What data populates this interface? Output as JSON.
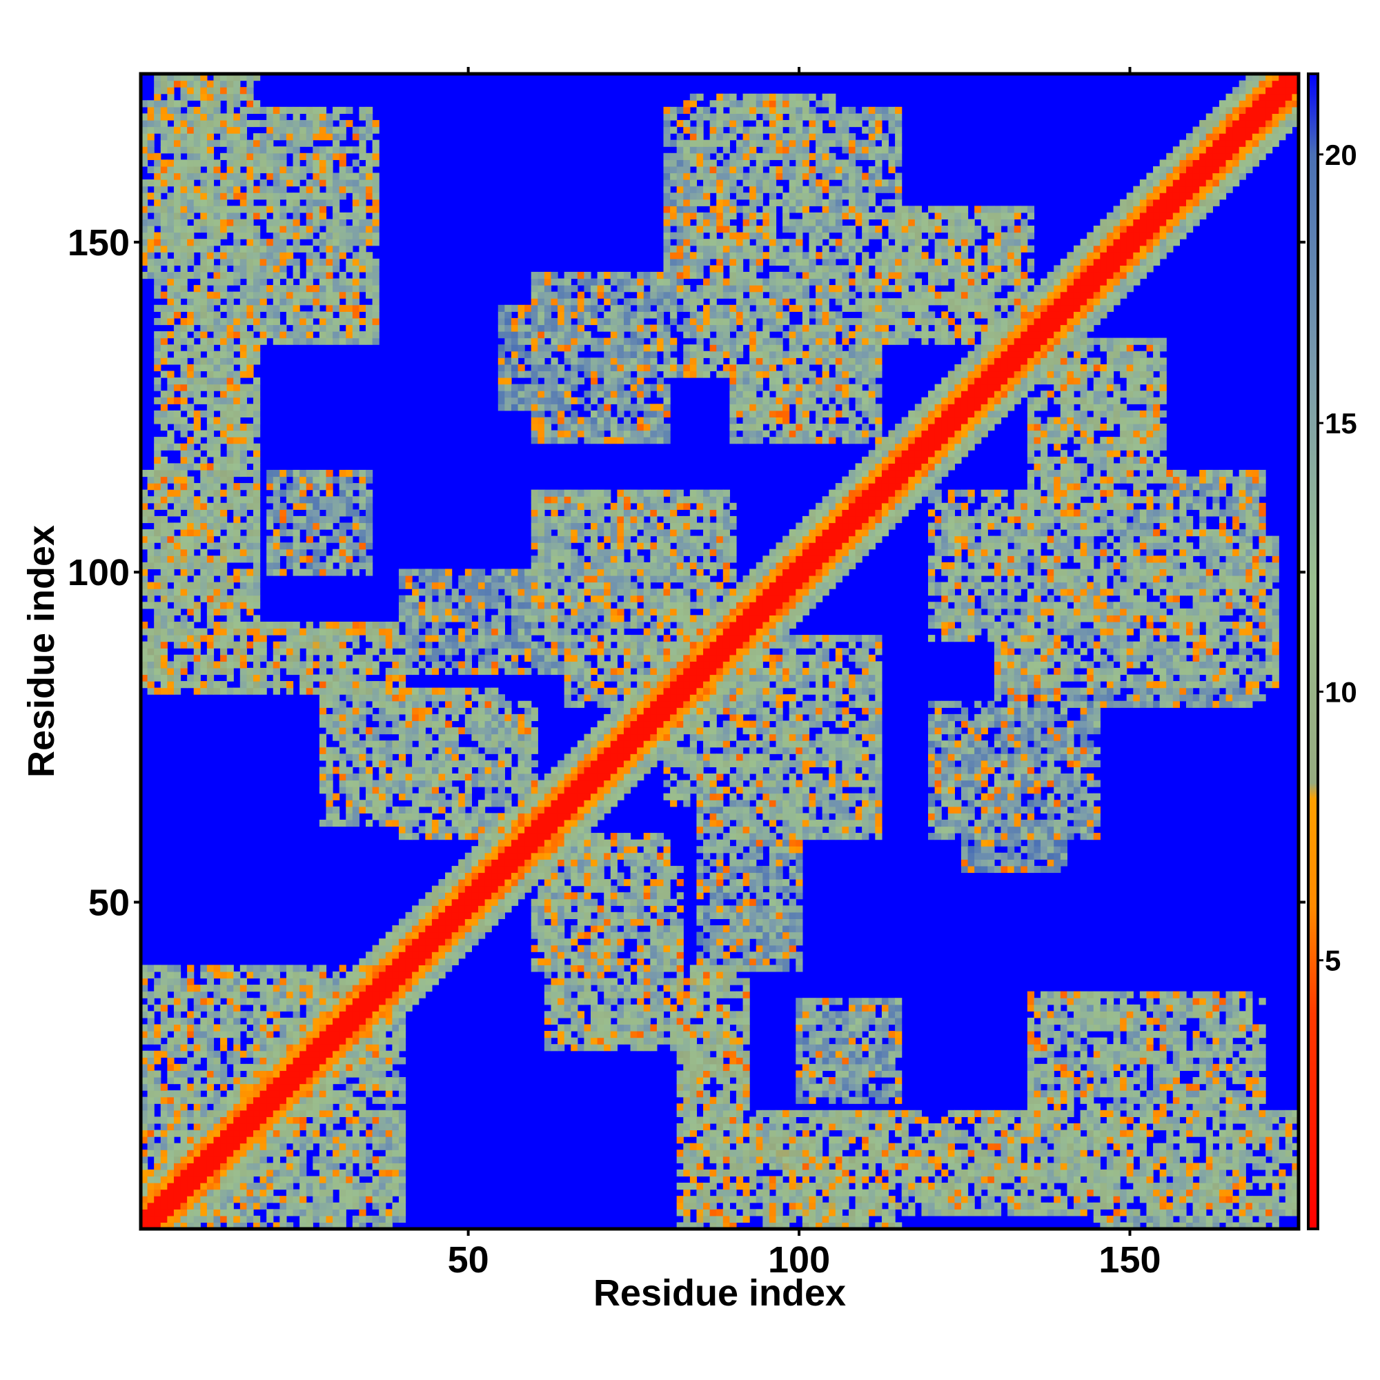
{
  "chart_data": {
    "type": "heatmap",
    "subtype": "residue distance map",
    "n_residues": 175,
    "xlabel": "Residue index",
    "ylabel": "Residue index",
    "x_ticks": [
      50,
      100,
      150
    ],
    "y_ticks": [
      50,
      100,
      150
    ],
    "xlim": [
      1,
      175
    ],
    "ylim": [
      1,
      175
    ],
    "colorbar": {
      "ticks": [
        5,
        10,
        15,
        20
      ],
      "range": [
        0,
        21.5
      ],
      "stops": [
        {
          "value": 0,
          "color": "#ff0000"
        },
        {
          "value": 4,
          "color": "#ff3a00"
        },
        {
          "value": 6,
          "color": "#ff8a00"
        },
        {
          "value": 8,
          "color": "#ffa000"
        },
        {
          "value": 8.3,
          "color": "#96aa80"
        },
        {
          "value": 12,
          "color": "#9bbf8f"
        },
        {
          "value": 16,
          "color": "#7a9bac"
        },
        {
          "value": 20,
          "color": "#4a70b5"
        },
        {
          "value": 21.5,
          "color": "#0000ff"
        }
      ]
    },
    "background_value_color": "#0000ff",
    "diagonal_band": {
      "core_half_width": 2,
      "band_half_width": 4,
      "halo_half_width": 7
    },
    "contact_blocks": [
      {
        "i_range": [
          1,
          12
        ],
        "j_range": [
          145,
          172
        ],
        "level": 10
      },
      {
        "i_range": [
          18,
          36
        ],
        "j_range": [
          135,
          168
        ],
        "level": 10
      },
      {
        "i_range": [
          8,
          18
        ],
        "j_range": [
          115,
          135
        ],
        "level": 9
      },
      {
        "i_range": [
          1,
          14
        ],
        "j_range": [
          95,
          115
        ],
        "level": 8
      },
      {
        "i_range": [
          1,
          40
        ],
        "j_range": [
          82,
          92
        ],
        "level": 9
      },
      {
        "i_range": [
          28,
          55
        ],
        "j_range": [
          62,
          82
        ],
        "level": 10
      },
      {
        "i_range": [
          60,
          90
        ],
        "j_range": [
          90,
          112
        ],
        "level": 10
      },
      {
        "i_range": [
          83,
          105
        ],
        "j_range": [
          130,
          172
        ],
        "level": 10
      },
      {
        "i_range": [
          110,
          135
        ],
        "j_range": [
          135,
          155
        ],
        "level": 9
      },
      {
        "i_range": [
          120,
          145
        ],
        "j_range": [
          90,
          112
        ],
        "level": 10
      },
      {
        "i_range": [
          140,
          170
        ],
        "j_range": [
          105,
          115
        ],
        "level": 11
      },
      {
        "i_range": [
          130,
          170
        ],
        "j_range": [
          80,
          90
        ],
        "level": 12
      },
      {
        "i_range": [
          120,
          145
        ],
        "j_range": [
          60,
          80
        ],
        "level": 12
      },
      {
        "i_range": [
          80,
          105
        ],
        "j_range": [
          65,
          90
        ],
        "level": 10
      },
      {
        "i_range": [
          60,
          80
        ],
        "j_range": [
          40,
          60
        ],
        "level": 10
      },
      {
        "i_range": [
          82,
          92
        ],
        "j_range": [
          1,
          40
        ],
        "level": 8
      },
      {
        "i_range": [
          90,
          175
        ],
        "j_range": [
          3,
          18
        ],
        "level": 9
      },
      {
        "i_range": [
          140,
          170
        ],
        "j_range": [
          15,
          35
        ],
        "level": 10
      },
      {
        "i_range": [
          1,
          35
        ],
        "j_range": [
          1,
          40
        ],
        "level": 10
      },
      {
        "i_range": [
          55,
          80
        ],
        "j_range": [
          125,
          140
        ],
        "level": 13
      },
      {
        "i_range": [
          40,
          80
        ],
        "j_range": [
          85,
          100
        ],
        "level": 12
      },
      {
        "i_range": [
          100,
          115
        ],
        "j_range": [
          20,
          35
        ],
        "level": 12
      }
    ]
  }
}
